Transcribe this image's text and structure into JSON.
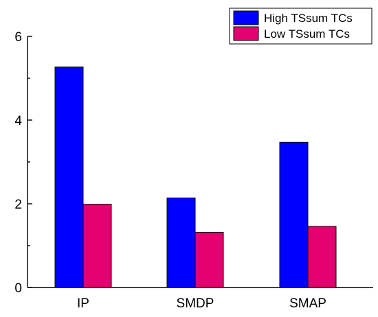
{
  "chart_data": {
    "type": "bar",
    "categories": [
      "IP",
      "SMDP",
      "SMAP"
    ],
    "series": [
      {
        "name": "High TSsum TCs",
        "values": [
          5.27,
          2.14,
          3.47
        ],
        "color": "#0000ff"
      },
      {
        "name": "Low TSsum TCs",
        "values": [
          1.99,
          1.32,
          1.46
        ],
        "color": "#e4006e"
      }
    ],
    "title": "",
    "xlabel": "",
    "ylabel": "",
    "ylim": [
      0,
      6
    ],
    "yticks": [
      "0",
      "2",
      "4",
      "6"
    ],
    "grid": false,
    "legend_position": "top-right"
  }
}
